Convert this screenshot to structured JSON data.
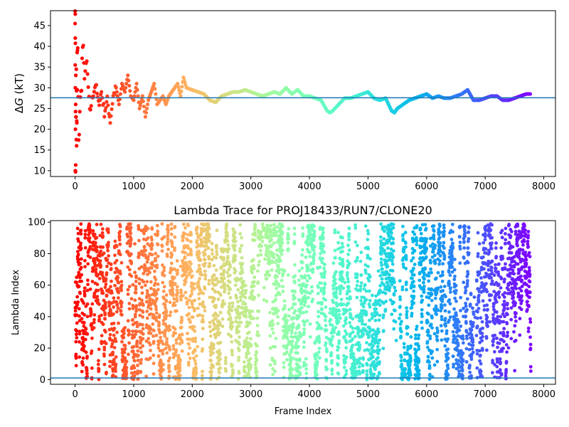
{
  "chart_data": [
    {
      "type": "scatter",
      "title": "",
      "xlabel": "",
      "ylabel": "ΔG (kT)",
      "ylabel_parts": {
        "delta": "Δ",
        "italic": "G",
        "unit": " (kT)"
      },
      "xlim": [
        -420,
        8200
      ],
      "ylim": [
        8.6,
        48.6
      ],
      "xticks": [
        "0",
        "1000",
        "2000",
        "3000",
        "4000",
        "5000",
        "6000",
        "7000",
        "8000"
      ],
      "yticks": [
        "10",
        "15",
        "20",
        "25",
        "30",
        "35",
        "40",
        "45"
      ],
      "hline": 27.6,
      "hline_color": "#1f77b4",
      "grid": false,
      "colormap": "rainbow (reversed: red at frame 0, violet at end)",
      "series": [
        {
          "x": [
            0,
            5,
            10,
            20,
            30,
            45,
            60,
            80,
            100,
            130,
            160,
            200,
            250,
            300,
            350,
            400,
            450,
            500,
            550,
            600,
            650,
            700,
            750,
            800,
            850,
            900,
            950,
            1000,
            1050,
            1100,
            1150,
            1200,
            1250,
            1300,
            1350,
            1400,
            1450,
            1500,
            1550,
            1600,
            1650,
            1700,
            1750,
            1800,
            1850,
            1900,
            2000,
            2100,
            2200,
            2300,
            2400,
            2500,
            2600,
            2700,
            2800,
            2900,
            3000,
            3100,
            3200,
            3300,
            3400,
            3500,
            3600,
            3700,
            3800,
            3900,
            4000,
            4100,
            4200,
            4300,
            4350,
            4400,
            4500,
            4600,
            4700,
            4800,
            4900,
            5000,
            5100,
            5200,
            5300,
            5400,
            5450,
            5500,
            5600,
            5700,
            5800,
            5900,
            6000,
            6100,
            6200,
            6300,
            6400,
            6500,
            6600,
            6700,
            6800,
            6900,
            7000,
            7100,
            7200,
            7300,
            7400,
            7500,
            7600,
            7700,
            7780
          ],
          "y": [
            48.5,
            42,
            10,
            35.5,
            20,
            38.5,
            15.5,
            25,
            28,
            40,
            33,
            36,
            24,
            28,
            31,
            26,
            29,
            24,
            27,
            22,
            28,
            30,
            26,
            31,
            29,
            33,
            28,
            27,
            31,
            25,
            28,
            23,
            27,
            29,
            31,
            26,
            27,
            28,
            26,
            28,
            29,
            30,
            31,
            28,
            32.5,
            30,
            29.5,
            29,
            28.5,
            27,
            26.5,
            28,
            28.5,
            29,
            29,
            29.5,
            29,
            28.5,
            28,
            28.5,
            29,
            28.5,
            30,
            28.5,
            29.5,
            28,
            28,
            27.5,
            27,
            24.5,
            24,
            24.5,
            26,
            27.5,
            27.5,
            28,
            28.5,
            29,
            27.5,
            27,
            27.5,
            24.5,
            24,
            25,
            26,
            27,
            27.5,
            28,
            28.5,
            27.5,
            28,
            27.5,
            27.5,
            28,
            28.5,
            29.5,
            27,
            27,
            27.5,
            28,
            28,
            27,
            27,
            27.5,
            28,
            28.5,
            28.5
          ]
        }
      ]
    },
    {
      "type": "scatter",
      "title": "Lambda Trace for PROJ18433/RUN7/CLONE20",
      "xlabel": "Frame Index",
      "ylabel": "Lambda Index",
      "xlim": [
        -420,
        8200
      ],
      "ylim": [
        -3,
        101
      ],
      "xticks": [
        "0",
        "1000",
        "2000",
        "3000",
        "4000",
        "5000",
        "6000",
        "7000",
        "8000"
      ],
      "yticks": [
        "0",
        "20",
        "40",
        "60",
        "80",
        "100"
      ],
      "hline": 1,
      "hline_color": "#1f77b4",
      "grid": false,
      "colormap": "rainbow (reversed: red at frame 0, violet at end)",
      "series": [
        {
          "x_range": [
            0,
            7780
          ],
          "y_range": [
            0,
            99
          ],
          "sparse_frame_ranges": [
            [
              3150,
              3250
            ],
            [
              4300,
              4350
            ],
            [
              5450,
              5550
            ],
            [
              6800,
              6850
            ]
          ]
        }
      ]
    }
  ]
}
